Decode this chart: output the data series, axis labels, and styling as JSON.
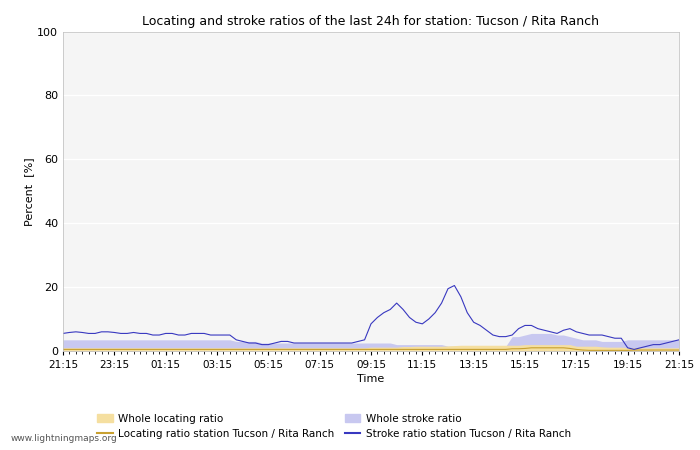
{
  "title": "Locating and stroke ratios of the last 24h for station: Tucson / Rita Ranch",
  "xlabel": "Time",
  "ylabel": "Percent  [%]",
  "ylim": [
    0,
    100
  ],
  "yticks": [
    0,
    20,
    40,
    60,
    80,
    100
  ],
  "xtick_labels": [
    "21:15",
    "23:15",
    "01:15",
    "03:15",
    "05:15",
    "07:15",
    "09:15",
    "11:15",
    "13:15",
    "15:15",
    "17:15",
    "19:15",
    "21:15"
  ],
  "watermark": "www.lightningmaps.org",
  "background_color": "#ffffff",
  "plot_bg_color": "#f5f5f5",
  "grid_color": "#ffffff",
  "whole_locating_fill_color": "#f5dfa0",
  "whole_stroke_fill_color": "#c8c8f0",
  "locating_line_color": "#c8a030",
  "stroke_line_color": "#3838c0",
  "legend_items": [
    {
      "label": "Whole locating ratio",
      "type": "fill",
      "color": "#f5dfa0"
    },
    {
      "label": "Locating ratio station Tucson / Rita Ranch",
      "type": "line",
      "color": "#c8a030"
    },
    {
      "label": "Whole stroke ratio",
      "type": "fill",
      "color": "#c8c8f0"
    },
    {
      "label": "Stroke ratio station Tucson / Rita Ranch",
      "type": "line",
      "color": "#3838c0"
    }
  ],
  "n_points": 97,
  "whole_locating_ratio": [
    1.0,
    1.0,
    1.0,
    1.0,
    1.0,
    1.0,
    1.0,
    1.0,
    1.0,
    1.0,
    1.0,
    1.0,
    1.0,
    1.0,
    1.0,
    1.0,
    1.0,
    1.0,
    1.0,
    1.0,
    1.0,
    1.0,
    1.0,
    1.0,
    1.0,
    1.0,
    1.0,
    1.0,
    1.0,
    1.0,
    1.0,
    1.0,
    1.0,
    1.0,
    1.0,
    1.0,
    1.0,
    1.0,
    1.0,
    1.0,
    1.0,
    1.0,
    1.0,
    1.0,
    1.0,
    1.0,
    1.0,
    1.0,
    1.2,
    1.2,
    1.2,
    1.2,
    1.2,
    1.4,
    1.4,
    1.5,
    1.5,
    1.5,
    1.5,
    1.5,
    1.6,
    1.7,
    1.8,
    1.8,
    1.8,
    1.8,
    1.8,
    1.8,
    1.8,
    1.8,
    1.8,
    1.8,
    2.0,
    2.0,
    2.0,
    2.0,
    2.0,
    2.0,
    2.0,
    2.0,
    1.5,
    1.5,
    1.5,
    1.5,
    1.3,
    1.2,
    1.2,
    1.2,
    1.0,
    1.0,
    1.0,
    1.0,
    1.0,
    1.0,
    1.0,
    1.0,
    1.0
  ],
  "whole_stroke_ratio": [
    3.5,
    3.5,
    3.5,
    3.5,
    3.5,
    3.5,
    3.5,
    3.5,
    3.5,
    3.5,
    3.5,
    3.5,
    3.5,
    3.5,
    3.5,
    3.5,
    3.5,
    3.5,
    3.5,
    3.5,
    3.5,
    3.5,
    3.5,
    3.5,
    3.5,
    3.5,
    3.5,
    3.0,
    3.0,
    3.0,
    3.0,
    2.5,
    2.5,
    2.5,
    2.5,
    2.5,
    2.5,
    2.5,
    2.5,
    2.5,
    2.5,
    2.5,
    2.5,
    2.5,
    2.5,
    2.5,
    2.5,
    2.5,
    2.5,
    2.5,
    2.5,
    2.5,
    2.0,
    2.0,
    2.0,
    2.0,
    2.0,
    2.0,
    2.0,
    2.0,
    1.5,
    1.5,
    1.5,
    1.5,
    1.5,
    1.5,
    1.5,
    1.5,
    1.5,
    1.5,
    4.5,
    4.5,
    5.0,
    5.5,
    5.5,
    5.5,
    5.5,
    5.0,
    5.0,
    4.5,
    4.0,
    3.5,
    3.5,
    3.5,
    3.0,
    3.0,
    3.0,
    3.0,
    3.5,
    3.5,
    3.5,
    3.5,
    3.5,
    3.5,
    3.5,
    3.5,
    3.5
  ],
  "locating_ratio_station": [
    0.5,
    0.5,
    0.5,
    0.5,
    0.5,
    0.5,
    0.5,
    0.5,
    0.5,
    0.5,
    0.5,
    0.5,
    0.5,
    0.5,
    0.5,
    0.5,
    0.5,
    0.5,
    0.5,
    0.5,
    0.5,
    0.5,
    0.5,
    0.5,
    0.5,
    0.5,
    0.5,
    0.5,
    0.5,
    0.5,
    0.5,
    0.5,
    0.5,
    0.5,
    0.5,
    0.5,
    0.5,
    0.5,
    0.5,
    0.5,
    0.5,
    0.5,
    0.5,
    0.5,
    0.5,
    0.5,
    0.5,
    0.5,
    0.5,
    0.5,
    0.5,
    0.5,
    0.5,
    0.5,
    0.5,
    0.5,
    0.5,
    0.5,
    0.5,
    0.5,
    0.5,
    0.5,
    0.5,
    0.5,
    0.5,
    0.5,
    0.5,
    0.5,
    0.5,
    0.5,
    0.7,
    0.7,
    0.8,
    1.0,
    1.0,
    1.0,
    1.0,
    1.0,
    1.0,
    0.8,
    0.5,
    0.3,
    0.2,
    0.2,
    0.2,
    0.2,
    0.2,
    0.2,
    0.2,
    0.3,
    0.3,
    0.3,
    0.3,
    0.3,
    0.3,
    0.3,
    0.3
  ],
  "stroke_ratio_station": [
    5.5,
    5.8,
    6.0,
    5.8,
    5.5,
    5.5,
    6.0,
    6.0,
    5.8,
    5.5,
    5.5,
    5.8,
    5.5,
    5.5,
    5.0,
    5.0,
    5.5,
    5.5,
    5.0,
    5.0,
    5.5,
    5.5,
    5.5,
    5.0,
    5.0,
    5.0,
    5.0,
    3.5,
    3.0,
    2.5,
    2.5,
    2.0,
    2.0,
    2.5,
    3.0,
    3.0,
    2.5,
    2.5,
    2.5,
    2.5,
    2.5,
    2.5,
    2.5,
    2.5,
    2.5,
    2.5,
    3.0,
    3.5,
    8.5,
    10.5,
    12.0,
    13.0,
    15.0,
    13.0,
    10.5,
    9.0,
    8.5,
    10.0,
    12.0,
    15.0,
    19.5,
    20.5,
    17.0,
    12.0,
    9.0,
    8.0,
    6.5,
    5.0,
    4.5,
    4.5,
    5.0,
    7.0,
    8.0,
    8.0,
    7.0,
    6.5,
    6.0,
    5.5,
    6.5,
    7.0,
    6.0,
    5.5,
    5.0,
    5.0,
    5.0,
    4.5,
    4.0,
    4.0,
    1.0,
    0.5,
    1.0,
    1.5,
    2.0,
    2.0,
    2.5,
    3.0,
    3.5
  ]
}
